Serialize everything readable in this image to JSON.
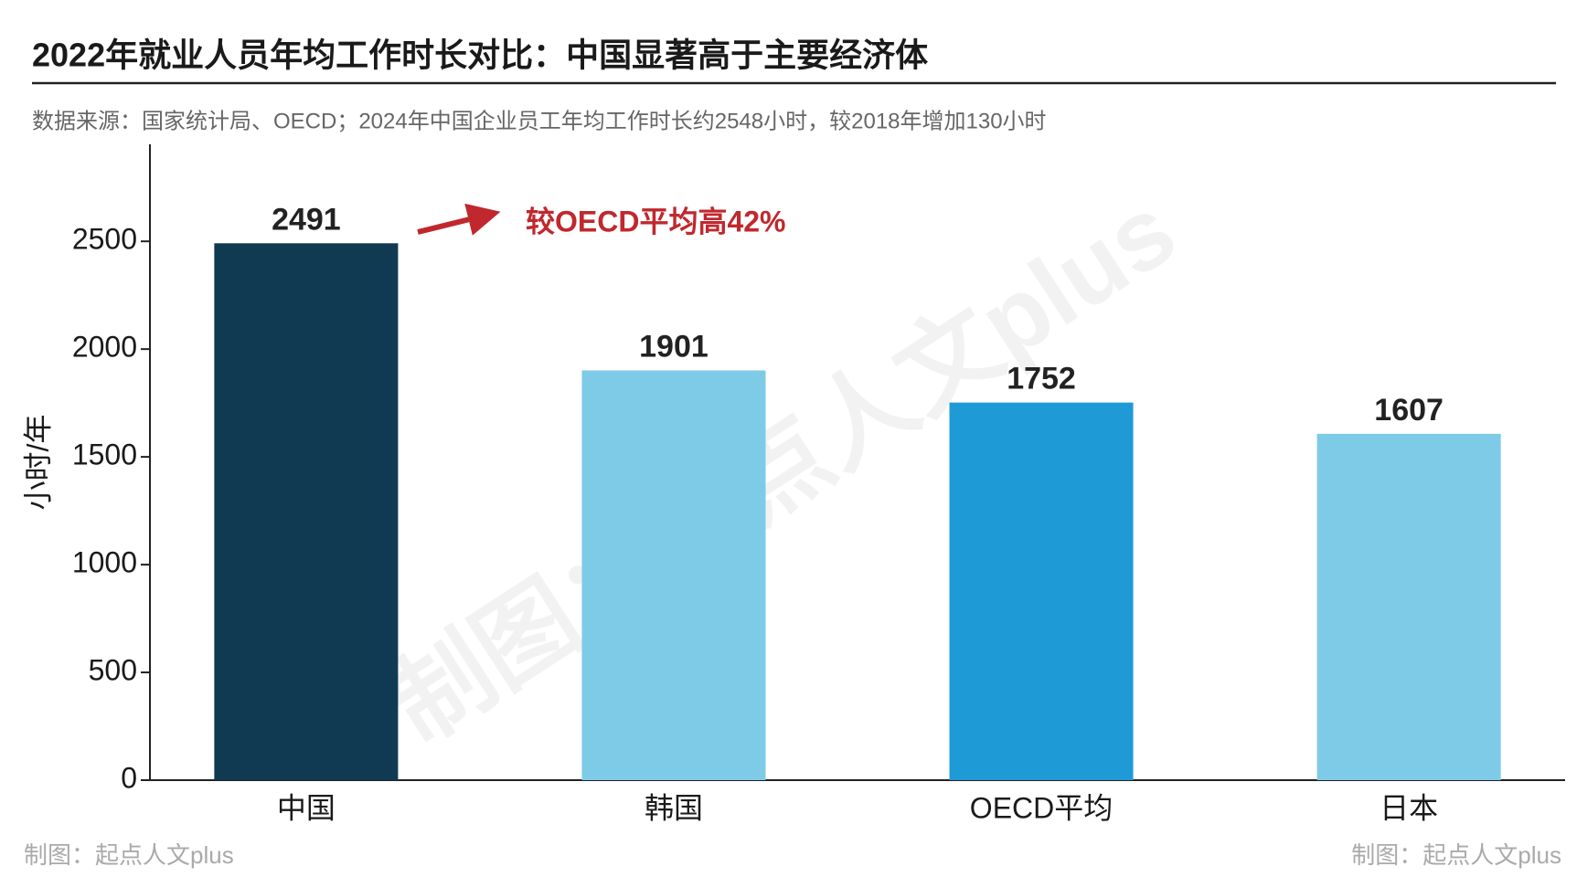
{
  "chart_data": {
    "type": "bar",
    "title": "2022年就业人员年均工作时长对比：中国显著高于主要经济体",
    "subtitle": "数据来源：国家统计局、OECD；2024年中国企业员工年均工作时长约2548小时，较2018年增加130小时",
    "y_label": "小时/年",
    "categories": [
      "中国",
      "韩国",
      "OECD平均",
      "日本"
    ],
    "values": [
      2491,
      1901,
      1752,
      1607
    ],
    "colors": [
      "#0f3a52",
      "#7ecbe8",
      "#1e9bd7",
      "#7ecbe8"
    ],
    "ylim": [
      0,
      2950
    ],
    "yticks": [
      0,
      500,
      1000,
      1500,
      2000,
      2500
    ],
    "grid": false,
    "annotation": "较OECD平均高42%",
    "watermark": "制图：起点人文plus",
    "credits": [
      "制图：起点人文plus",
      "制图：起点人文plus"
    ]
  }
}
